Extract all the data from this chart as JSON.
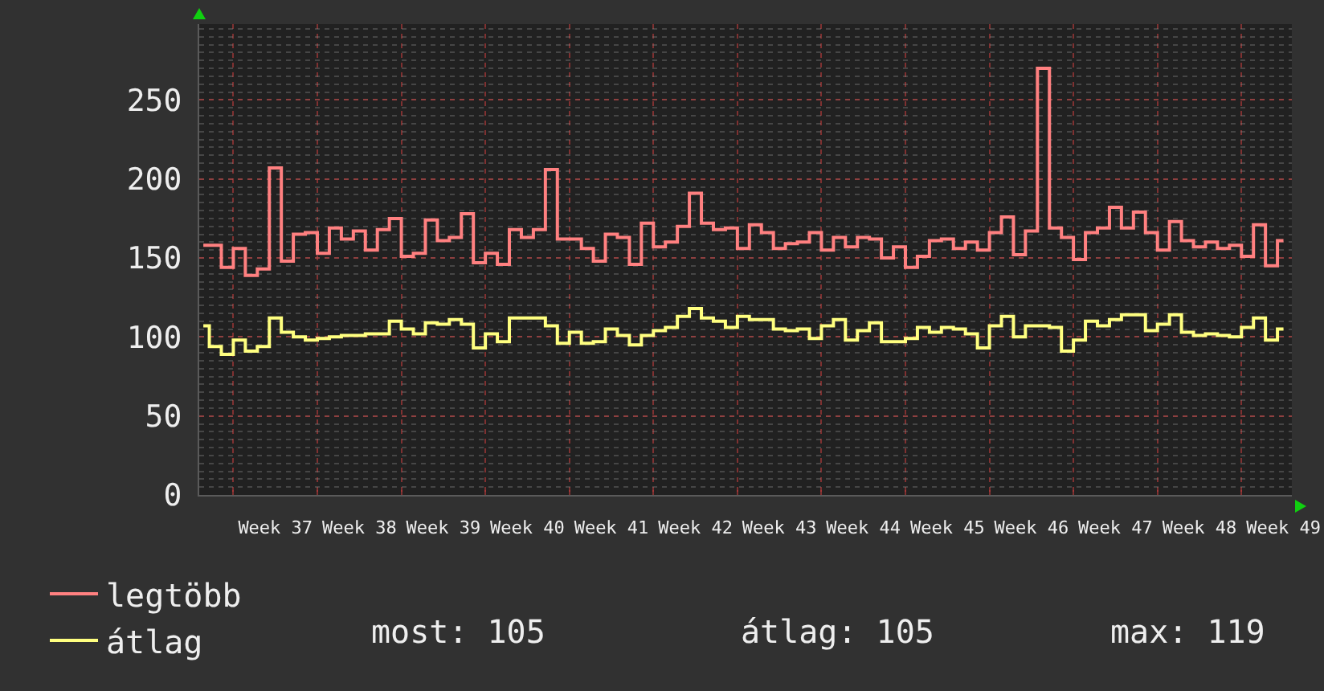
{
  "chart_data": {
    "type": "step",
    "categories": [
      null,
      null,
      null,
      null,
      null,
      null,
      "Week 37",
      null,
      null,
      null,
      null,
      null,
      null,
      "Week 38",
      null,
      null,
      null,
      null,
      null,
      null,
      "Week 39",
      null,
      null,
      null,
      null,
      null,
      null,
      "Week 40",
      null,
      null,
      null,
      null,
      null,
      null,
      "Week 41",
      null,
      null,
      null,
      null,
      null,
      null,
      "Week 42",
      null,
      null,
      null,
      null,
      null,
      null,
      "Week 43",
      null,
      null,
      null,
      null,
      null,
      null,
      "Week 44",
      null,
      null,
      null,
      null,
      null,
      null,
      "Week 45",
      null,
      null,
      null,
      null,
      null,
      null,
      "Week 46",
      null,
      null,
      null,
      null,
      null,
      null,
      "Week 47",
      null,
      null,
      null,
      null,
      null,
      null,
      "Week 48",
      null,
      null,
      null,
      null,
      null,
      null,
      "Week 49"
    ],
    "series": [
      {
        "name": "legtöbb",
        "color": "#ff8080",
        "values": [
          158,
          158,
          144,
          156,
          139,
          143,
          207,
          148,
          165,
          166,
          153,
          169,
          162,
          167,
          155,
          168,
          175,
          151,
          153,
          174,
          161,
          163,
          178,
          147,
          153,
          146,
          168,
          163,
          168,
          206,
          162,
          162,
          156,
          148,
          165,
          163,
          146,
          172,
          157,
          160,
          170,
          191,
          172,
          168,
          169,
          156,
          171,
          166,
          156,
          159,
          160,
          166,
          155,
          163,
          157,
          163,
          162,
          150,
          157,
          144,
          151,
          161,
          162,
          156,
          160,
          155,
          166,
          176,
          152,
          167,
          270,
          169,
          163,
          149,
          166,
          169,
          182,
          169,
          179,
          166,
          155,
          173,
          161,
          157,
          160,
          156,
          158,
          151,
          171,
          145,
          161
        ]
      },
      {
        "name": "átlag",
        "color": "#ffff80",
        "values": [
          107,
          94,
          89,
          98,
          91,
          94,
          112,
          103,
          100,
          98,
          99,
          100,
          101,
          101,
          102,
          102,
          110,
          105,
          102,
          109,
          108,
          111,
          108,
          93,
          102,
          97,
          112,
          112,
          112,
          107,
          96,
          103,
          96,
          97,
          105,
          101,
          95,
          101,
          104,
          106,
          113,
          118,
          112,
          110,
          106,
          113,
          111,
          111,
          105,
          104,
          105,
          99,
          107,
          111,
          98,
          104,
          109,
          97,
          97,
          99,
          106,
          103,
          106,
          105,
          102,
          93,
          107,
          113,
          100,
          107,
          107,
          106,
          91,
          98,
          110,
          107,
          111,
          114,
          114,
          104,
          108,
          114,
          103,
          101,
          102,
          101,
          100,
          106,
          112,
          98,
          105
        ]
      }
    ],
    "ylim": [
      0,
      298
    ],
    "yticks": [
      0,
      50,
      100,
      150,
      200,
      250
    ],
    "annotations": [
      "most: 105",
      "átlag: 105",
      "max: 119"
    ],
    "legend": "bottom left",
    "grid": true,
    "line_style": "solid"
  }
}
